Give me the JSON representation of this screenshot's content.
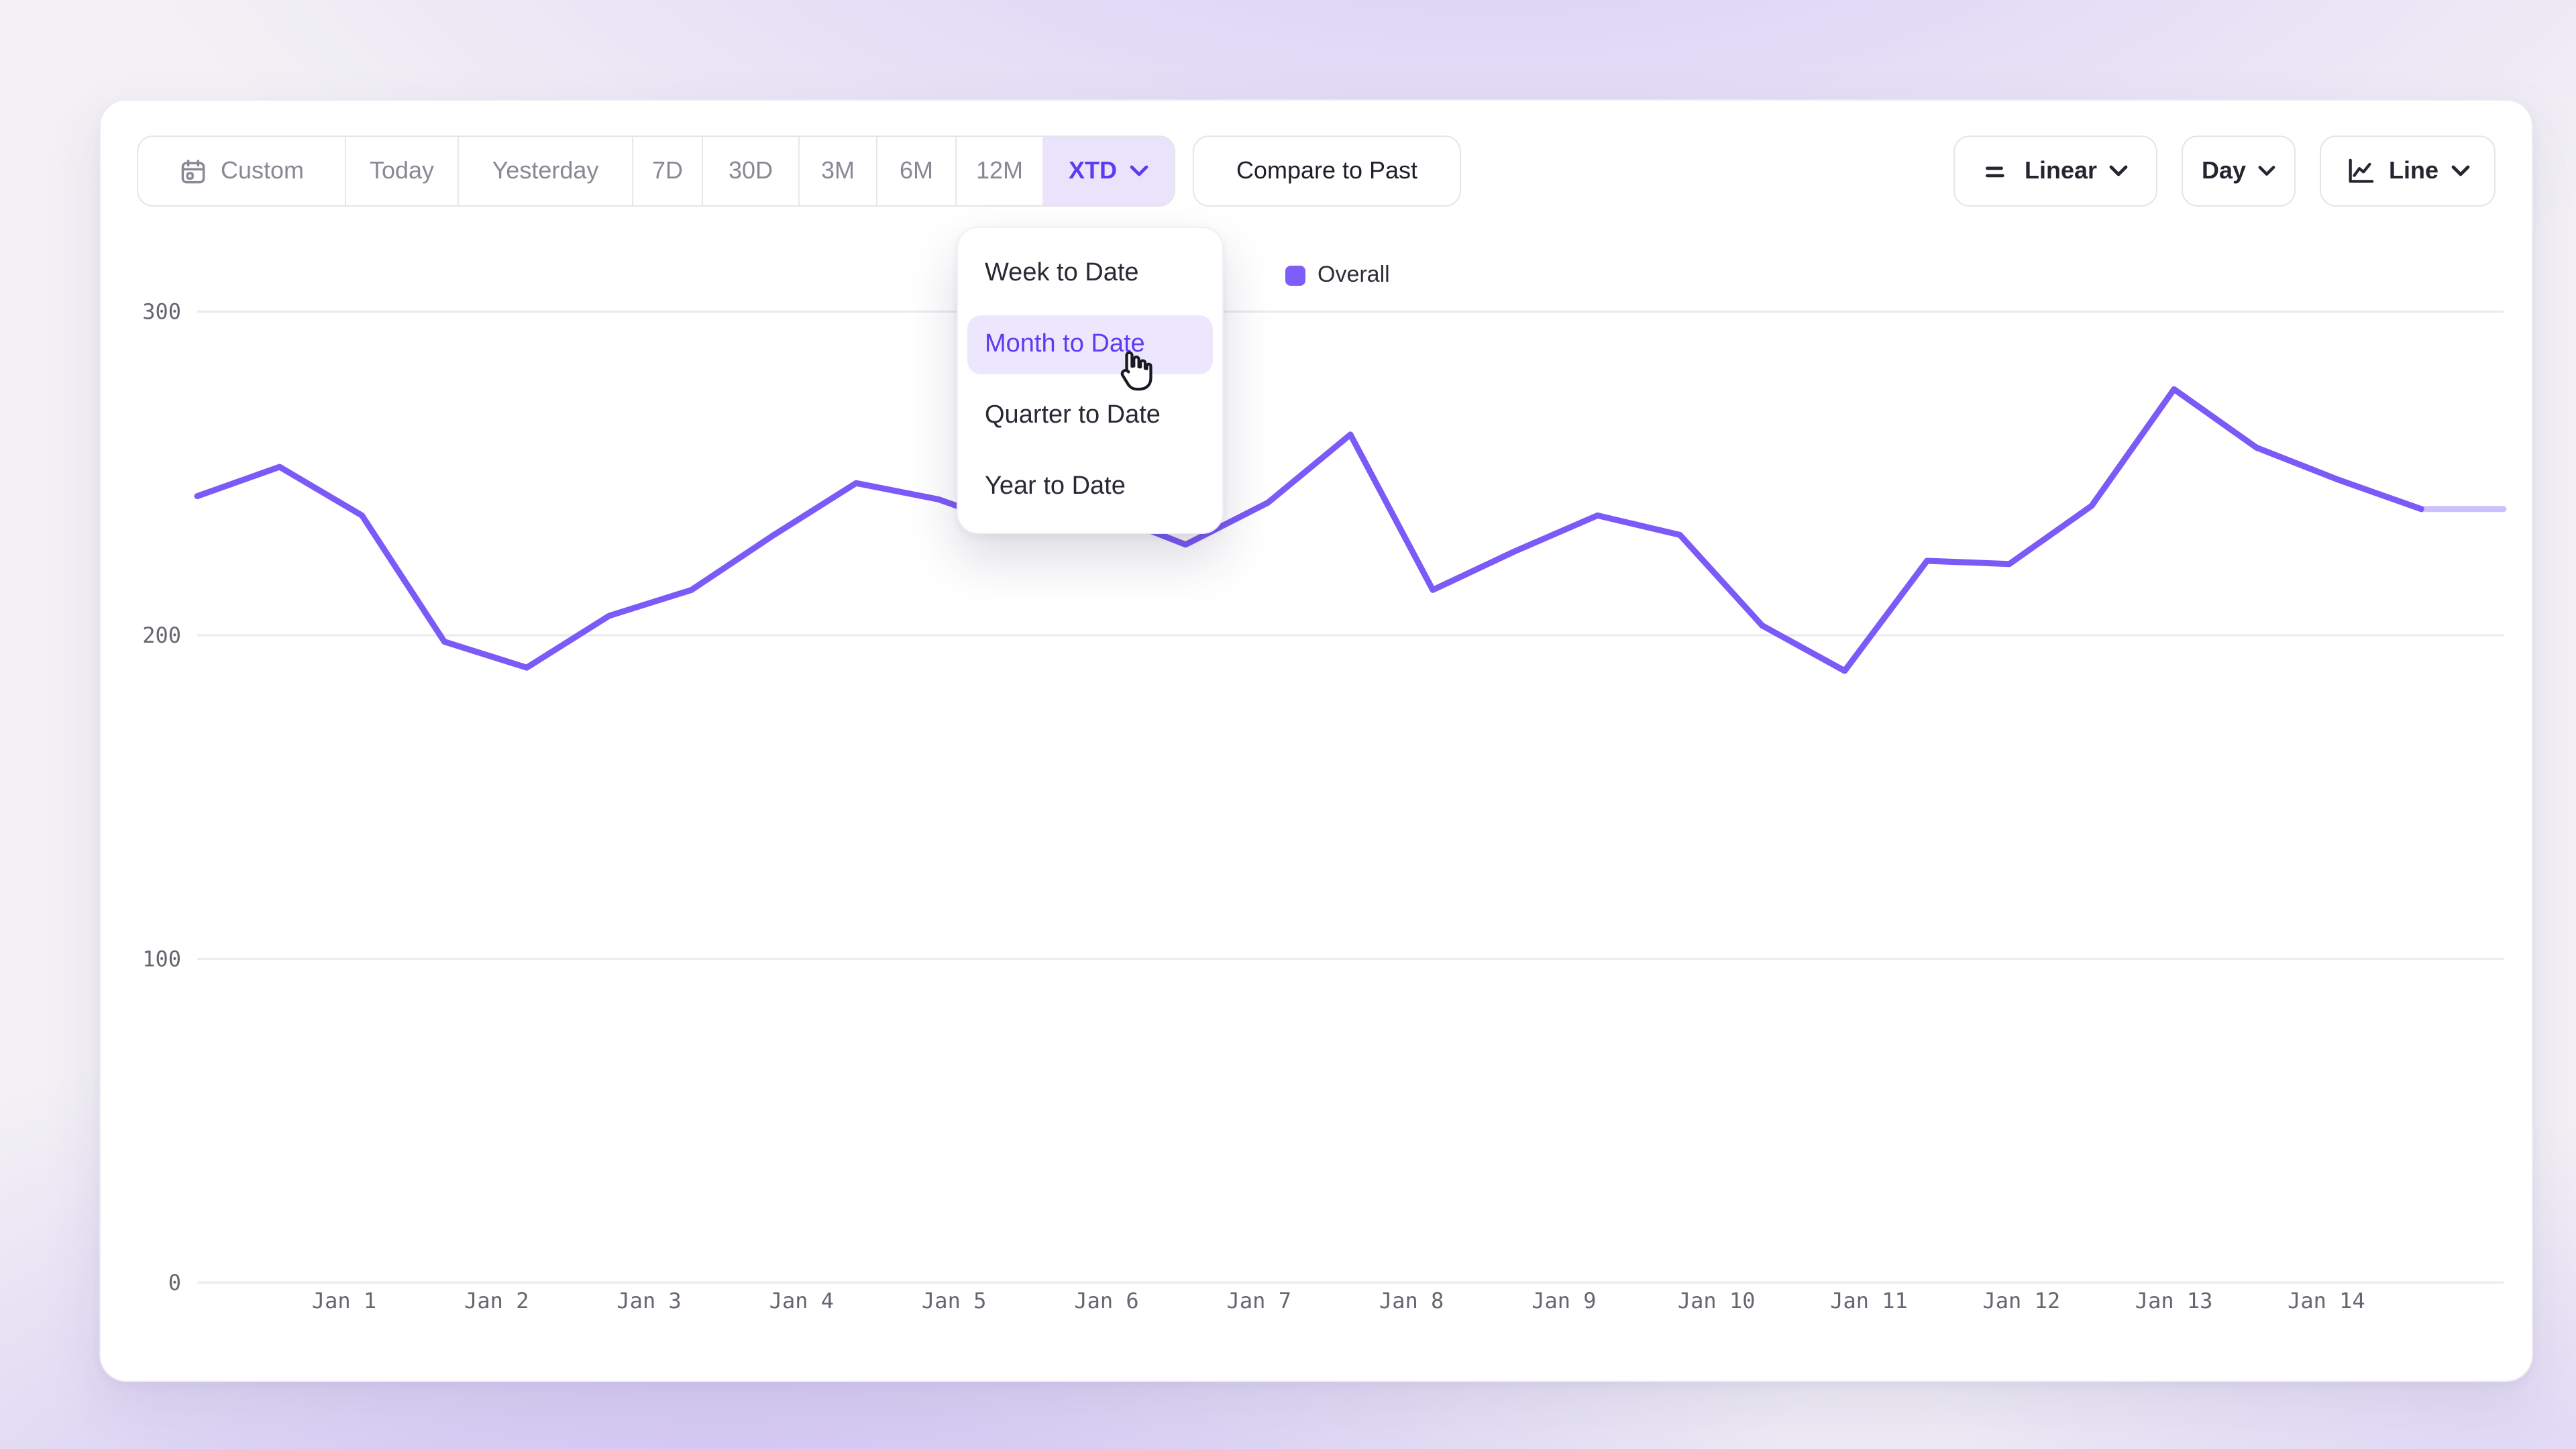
{
  "toolbar": {
    "date_ranges": [
      {
        "label": "Custom",
        "icon": "calendar",
        "selected": false
      },
      {
        "label": "Today",
        "selected": false
      },
      {
        "label": "Yesterday",
        "selected": false
      },
      {
        "label": "7D",
        "selected": false
      },
      {
        "label": "30D",
        "selected": false
      },
      {
        "label": "3M",
        "selected": false
      },
      {
        "label": "6M",
        "selected": false
      },
      {
        "label": "12M",
        "selected": false
      },
      {
        "label": "XTD",
        "selected": true,
        "has_chevron": true
      }
    ],
    "compare_label": "Compare to Past",
    "scale_label": "Linear",
    "interval_label": "Day",
    "chart_type_label": "Line"
  },
  "dropdown": {
    "items": [
      {
        "label": "Week to Date",
        "highlighted": false
      },
      {
        "label": "Month to Date",
        "highlighted": true,
        "cursor": "pointer-hand"
      },
      {
        "label": "Quarter to Date",
        "highlighted": false
      },
      {
        "label": "Year to Date",
        "highlighted": false
      }
    ]
  },
  "legend": {
    "label": "Overall",
    "color": "#7E5DF8"
  },
  "chart_data": {
    "type": "line",
    "title": "",
    "xlabel": "",
    "ylabel": "",
    "categories": [
      "Jan 1",
      "Jan 2",
      "Jan 3",
      "Jan 4",
      "Jan 5",
      "Jan 6",
      "Jan 7",
      "Jan 8",
      "Jan 9",
      "Jan 10",
      "Jan 11",
      "Jan 12",
      "Jan 13",
      "Jan 14"
    ],
    "yticks": [
      0,
      100,
      200,
      300
    ],
    "ylim": [
      0,
      320
    ],
    "grid": "horizontal-only",
    "legend_position": "top-center",
    "points_per_day": 2,
    "series": [
      {
        "name": "Overall",
        "color": "#7B5AF7",
        "values": [
          243,
          252,
          237,
          198,
          190,
          206,
          214,
          231,
          247,
          242,
          233,
          238,
          228,
          241,
          262,
          214,
          226,
          237,
          231,
          203,
          189,
          223,
          222,
          240,
          276,
          258,
          248,
          239,
          239
        ],
        "incomplete_tail_points": 1
      }
    ]
  },
  "colors": {
    "accent_text": "#5D3BF2",
    "selected_bg": "#EAE3FC",
    "highlight_bg": "#EDE7FE",
    "line": "#7B5AF7",
    "grid": "#ECEBEF",
    "axis_text": "#67656F",
    "muted_text": "#8B8894",
    "dark_text": "#26242E",
    "card_bg": "#FFFFFF",
    "page_bg": "#F3F1F5",
    "projection_tail_opacity": 0.38
  }
}
